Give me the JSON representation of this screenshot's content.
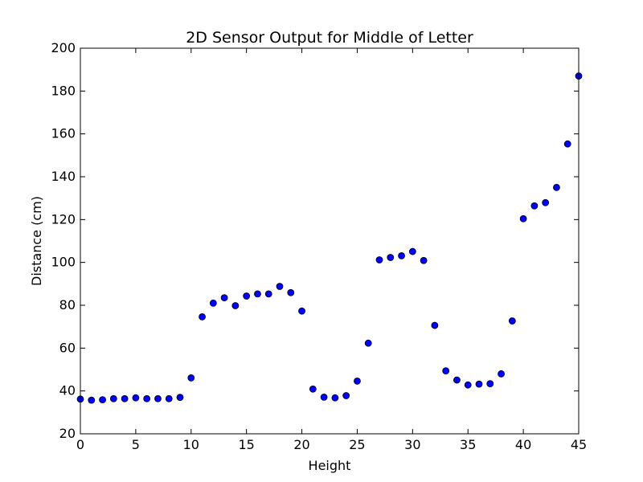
{
  "chart_data": {
    "type": "scatter",
    "title": "2D Sensor Output for Middle of Letter",
    "xlabel": "Height",
    "ylabel": "Distance (cm)",
    "xlim": [
      0,
      45
    ],
    "ylim": [
      20,
      200
    ],
    "xticks": [
      0,
      5,
      10,
      15,
      20,
      25,
      30,
      35,
      40,
      45
    ],
    "yticks": [
      20,
      40,
      60,
      80,
      100,
      120,
      140,
      160,
      180,
      200
    ],
    "grid": false,
    "marker_color": "#0000ff",
    "marker_edge_color": "#000000",
    "series": [
      {
        "x": [
          0,
          1,
          2,
          3,
          4,
          5,
          6,
          7,
          8,
          9,
          10,
          11,
          12,
          13,
          14,
          15,
          16,
          17,
          18,
          19,
          20,
          21,
          22,
          23,
          24,
          25,
          26,
          27,
          28,
          29,
          30,
          31,
          32,
          33,
          34,
          35,
          36,
          37,
          38,
          39,
          40,
          41,
          42,
          43,
          44,
          45
        ],
        "y": [
          36.2,
          35.7,
          35.9,
          36.4,
          36.4,
          36.8,
          36.4,
          36.4,
          36.4,
          37.0,
          46.1,
          74.6,
          81.0,
          83.5,
          79.8,
          84.3,
          85.3,
          85.3,
          88.8,
          85.9,
          77.3,
          40.9,
          37.1,
          36.8,
          37.8,
          44.6,
          62.3,
          101.2,
          102.3,
          103.1,
          105.1,
          100.9,
          70.6,
          49.4,
          45.1,
          42.8,
          43.2,
          43.4,
          48.0,
          72.7,
          120.4,
          126.4,
          127.9,
          135.0,
          155.3,
          187.0
        ]
      }
    ]
  }
}
